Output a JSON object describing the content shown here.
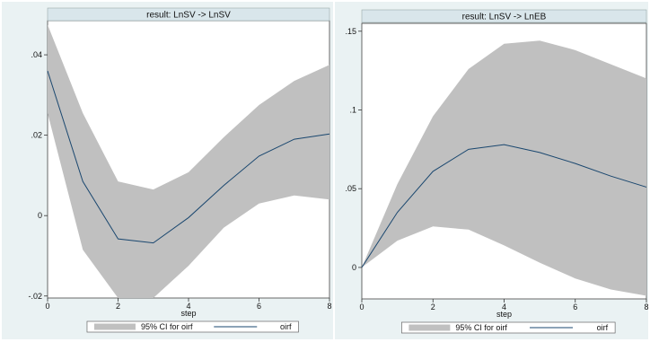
{
  "chart_data": [
    {
      "type": "area",
      "title": "result: LnSV -> LnSV",
      "xlabel": "step",
      "ylabel": "",
      "x": [
        0,
        1,
        2,
        3,
        4,
        5,
        6,
        7,
        8
      ],
      "xticks": [
        0,
        2,
        4,
        6,
        8
      ],
      "xlim": [
        0,
        8
      ],
      "yticks": [
        -0.02,
        0,
        0.02,
        0.04
      ],
      "ytick_labels": [
        "-.02",
        "0",
        ".02",
        ".04"
      ],
      "ylim": [
        -0.0205,
        0.0485
      ],
      "series": [
        {
          "name": "95% CI for oirf",
          "kind": "band",
          "lower": [
            0.0255,
            -0.0085,
            -0.0205,
            -0.0205,
            -0.0125,
            -0.003,
            0.003,
            0.005,
            0.004
          ],
          "upper": [
            0.0475,
            0.0255,
            0.0085,
            0.0065,
            0.0108,
            0.0195,
            0.0275,
            0.0335,
            0.0375
          ]
        },
        {
          "name": "oirf",
          "kind": "line",
          "values": [
            0.036,
            0.0085,
            -0.0058,
            -0.0068,
            -0.0005,
            0.0075,
            0.0148,
            0.019,
            0.0203
          ]
        }
      ],
      "legend": [
        "95% CI for oirf",
        "oirf"
      ],
      "legend_position": "bottom",
      "colors": {
        "band": "#c0c0c0",
        "line": "#1a476f",
        "title_bar": "#d9e6eb",
        "frame_bg": "#eaf2f3"
      }
    },
    {
      "type": "area",
      "title": "result: LnSV -> LnEB",
      "xlabel": "step",
      "ylabel": "",
      "x": [
        0,
        1,
        2,
        3,
        4,
        5,
        6,
        7,
        8
      ],
      "xticks": [
        0,
        2,
        4,
        6,
        8
      ],
      "xlim": [
        0,
        8
      ],
      "yticks": [
        0,
        0.05,
        0.1,
        0.15
      ],
      "ytick_labels": [
        "0",
        ".05",
        ".1",
        ".15"
      ],
      "ylim": [
        -0.02,
        0.155
      ],
      "series": [
        {
          "name": "95% CI for oirf",
          "kind": "band",
          "lower": [
            0,
            0.017,
            0.026,
            0.024,
            0.014,
            0.003,
            -0.007,
            -0.014,
            -0.018
          ],
          "upper": [
            0,
            0.053,
            0.096,
            0.126,
            0.142,
            0.144,
            0.138,
            0.129,
            0.12
          ]
        },
        {
          "name": "oirf",
          "kind": "line",
          "values": [
            0,
            0.035,
            0.061,
            0.075,
            0.078,
            0.073,
            0.066,
            0.058,
            0.051
          ]
        }
      ],
      "legend": [
        "95% CI for oirf",
        "oirf"
      ],
      "legend_position": "bottom",
      "colors": {
        "band": "#c0c0c0",
        "line": "#1a476f",
        "title_bar": "#d9e6eb",
        "frame_bg": "#eaf2f3"
      }
    }
  ]
}
